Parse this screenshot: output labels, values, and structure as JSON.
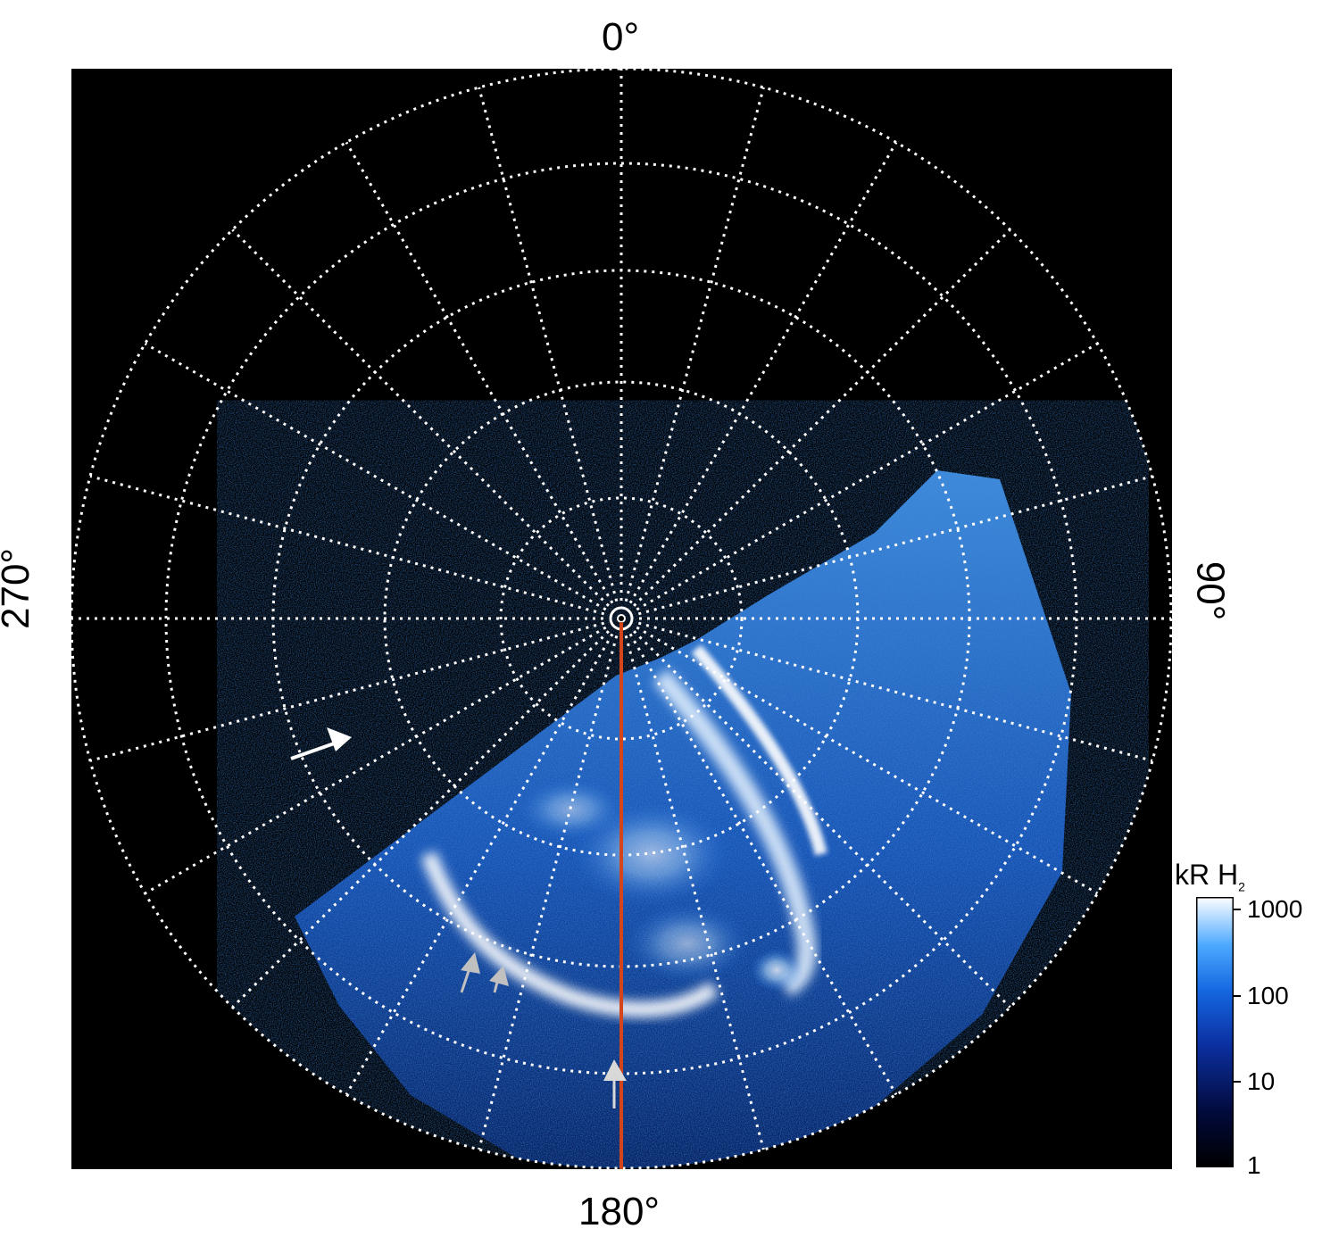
{
  "axis_labels": {
    "top": "0°",
    "bottom": "180°",
    "left": "270°",
    "right": "90°"
  },
  "colorbar": {
    "unit_text": "kR H",
    "unit_sub": "2",
    "ticks": [
      "1000",
      "100",
      "10",
      "1"
    ]
  },
  "colors": {
    "grid": "#ffffff",
    "meridian_line": "#d4451c",
    "background": "#000000",
    "arrow_white": "#ffffff",
    "arrow_gray": "#c0c0c0"
  }
}
